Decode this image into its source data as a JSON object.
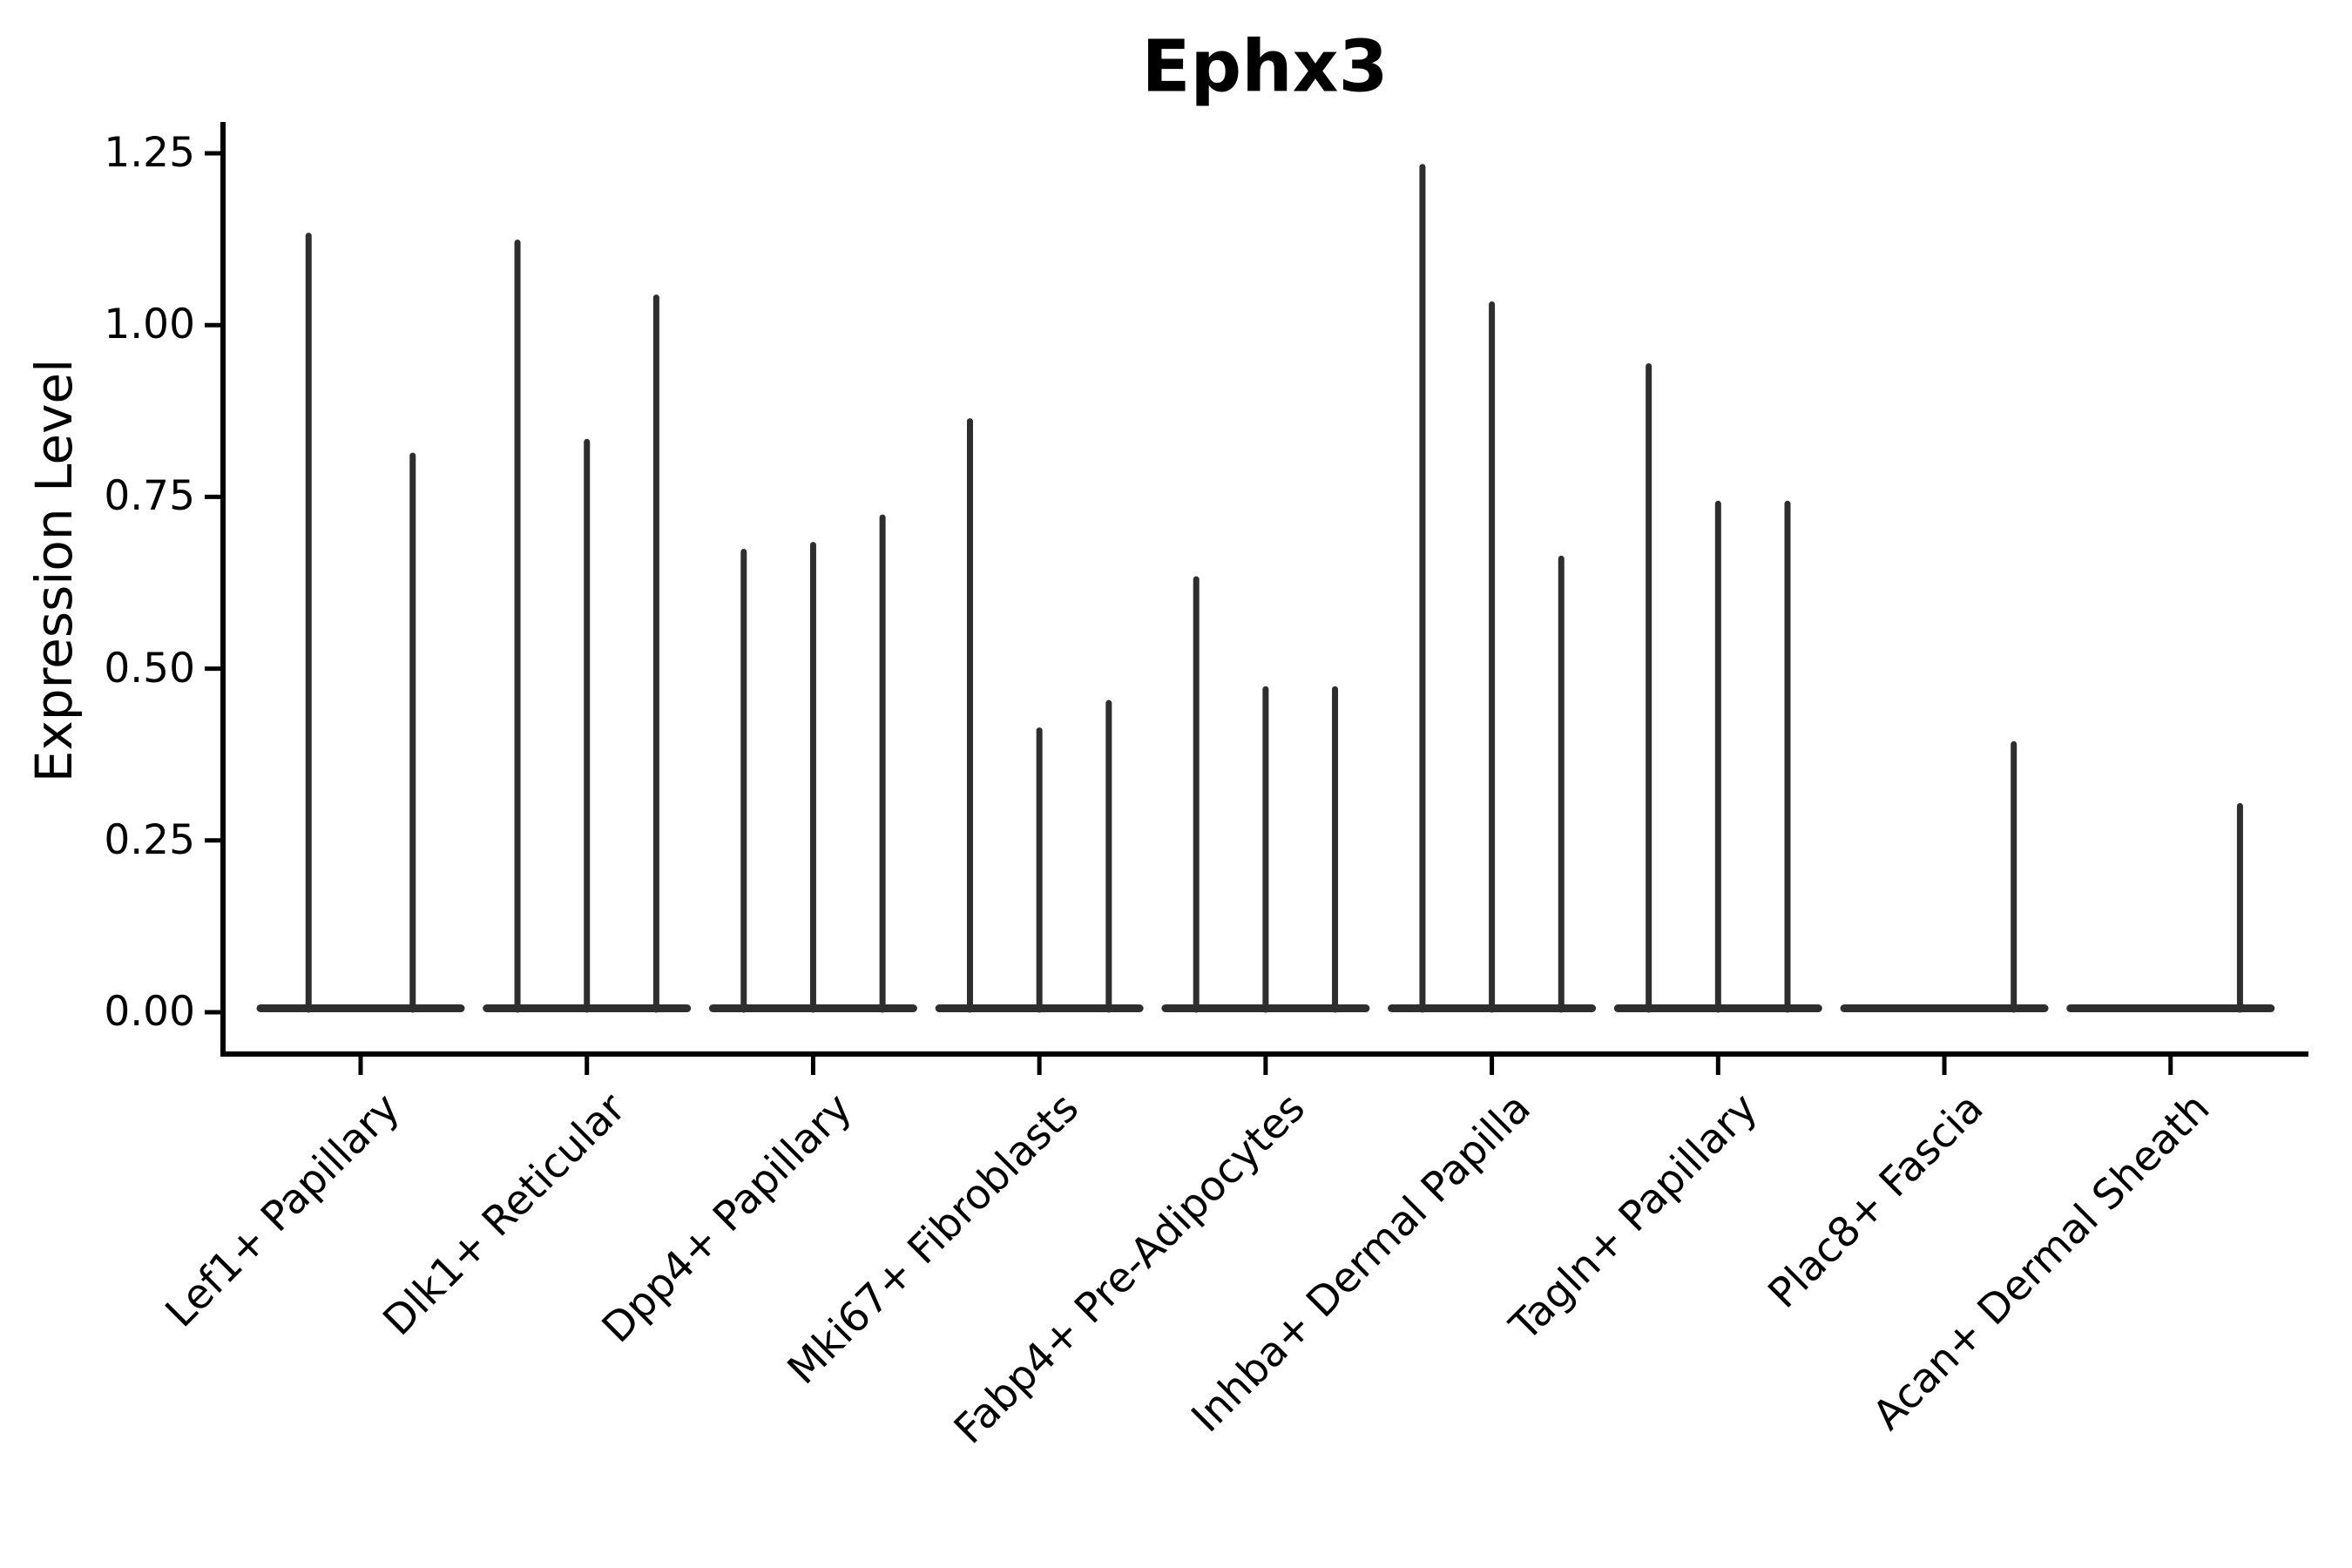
{
  "chart_data": {
    "type": "violin",
    "title": "Ephx3",
    "ylabel": "Expression Level",
    "xlabel": "",
    "ylim": [
      -0.06,
      1.3
    ],
    "yticks": [
      0,
      0.25,
      0.5,
      0.75,
      1.0,
      1.25
    ],
    "ytick_labels": [
      "0.00",
      "0.25",
      "0.50",
      "0.75",
      "1.00",
      "1.25"
    ],
    "grid": false,
    "legend_position": "none",
    "axis_color": "#000000",
    "violin_color": "#2e2e2e",
    "categories": [
      "Lef1+ Papillary",
      "Dlk1+ Reticular",
      "Dpp4+ Papillary",
      "Mki67+ Fibroblasts",
      "Fabp4+ Pre-Adipocytes",
      "Inhba+ Dermal Papilla",
      "Tagln+ Papillary",
      "Plac8+ Fascia",
      "Acan+ Dermal Sheath"
    ],
    "series": [
      {
        "category": "Lef1+ Papillary",
        "violin_peaks": [
          1.13,
          0.81
        ]
      },
      {
        "category": "Dlk1+ Reticular",
        "violin_peaks": [
          1.12,
          0.83,
          1.04
        ]
      },
      {
        "category": "Dpp4+ Papillary",
        "violin_peaks": [
          0.67,
          0.68,
          0.72
        ]
      },
      {
        "category": "Mki67+ Fibroblasts",
        "violin_peaks": [
          0.86,
          0.41,
          0.45
        ]
      },
      {
        "category": "Fabp4+ Pre-Adipocytes",
        "violin_peaks": [
          0.63,
          0.47,
          0.47
        ]
      },
      {
        "category": "Inhba+ Dermal Papilla",
        "violin_peaks": [
          1.23,
          1.03,
          0.66
        ]
      },
      {
        "category": "Tagln+ Papillary",
        "violin_peaks": [
          0.94,
          0.74,
          0.74
        ]
      },
      {
        "category": "Plac8+ Fascia",
        "violin_peaks": [
          0,
          0,
          0.39
        ]
      },
      {
        "category": "Acan+ Dermal Sheath",
        "violin_peaks": [
          0,
          0,
          0.3
        ]
      }
    ]
  }
}
